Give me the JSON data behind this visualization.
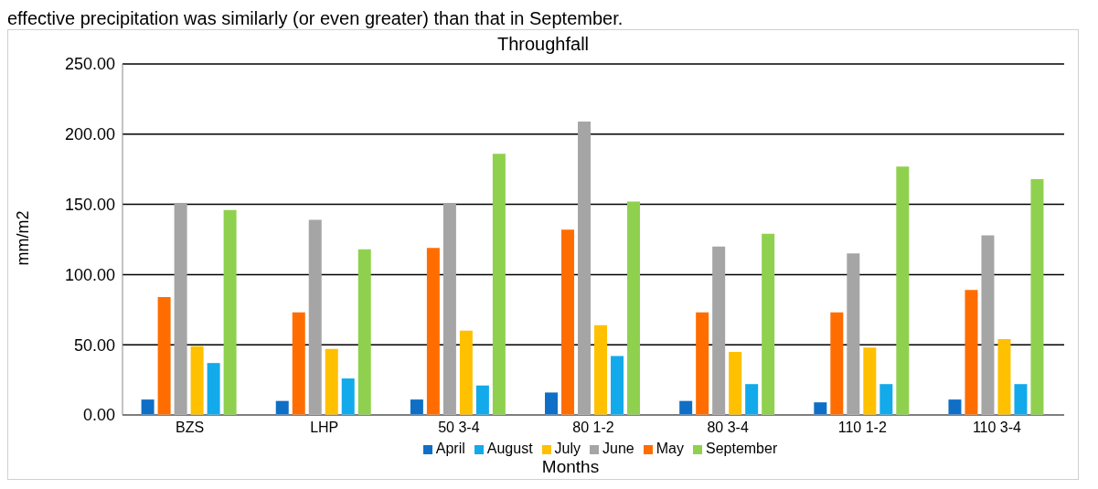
{
  "chart_data": {
    "type": "bar",
    "title": "Throughfall",
    "xlabel": "Months",
    "ylabel": "mm/m2",
    "annotations": [
      "effective precipitation was similarly (or even greater) than that in September."
    ],
    "categories": [
      "BZS",
      "LHP",
      "50 3-4",
      "80 1-2",
      "80 3-4",
      "110 1-2",
      "110 3-4"
    ],
    "series": [
      {
        "name": "April",
        "color": "#0f6fc6",
        "values": [
          11,
          10,
          11,
          16,
          10,
          9,
          11
        ]
      },
      {
        "name": "May",
        "color": "#ff6d00",
        "values": [
          84,
          73,
          119,
          132,
          73,
          73,
          89
        ]
      },
      {
        "name": "June",
        "color": "#a5a5a5",
        "values": [
          151,
          139,
          151,
          209,
          120,
          115,
          128
        ]
      },
      {
        "name": "July",
        "color": "#ffc000",
        "values": [
          49,
          47,
          60,
          64,
          45,
          48,
          54
        ]
      },
      {
        "name": "August",
        "color": "#12aaeb",
        "values": [
          37,
          26,
          21,
          42,
          22,
          22,
          22
        ]
      },
      {
        "name": "September",
        "color": "#8fd14f",
        "values": [
          146,
          118,
          186,
          152,
          129,
          177,
          168
        ]
      }
    ],
    "ylim": [
      0,
      250
    ],
    "yticks": [
      {
        "value": 0,
        "label": "0.00"
      },
      {
        "value": 50,
        "label": "50.00"
      },
      {
        "value": 100,
        "label": "100.00"
      },
      {
        "value": 150,
        "label": "150.00"
      },
      {
        "value": 200,
        "label": "200.00"
      },
      {
        "value": 250,
        "label": "250.00"
      }
    ],
    "grid": "y",
    "legend": "bottom"
  }
}
